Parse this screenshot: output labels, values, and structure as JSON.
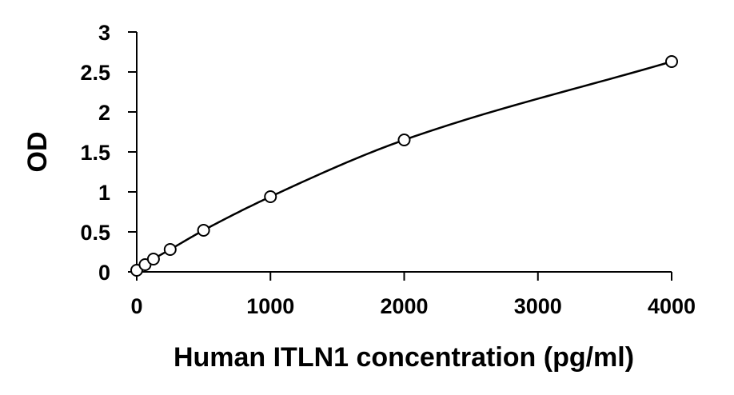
{
  "chart_data": {
    "type": "scatter",
    "title": "",
    "xlabel": "Human ITLN1 concentration (pg/ml)",
    "ylabel": "OD",
    "xlim": [
      0,
      4000
    ],
    "ylim": [
      0,
      3
    ],
    "xticks": [
      0,
      1000,
      2000,
      3000,
      4000
    ],
    "yticks": [
      0,
      0.5,
      1,
      1.5,
      2,
      2.5,
      3
    ],
    "xtick_labels": [
      "0",
      "1000",
      "2000",
      "3000",
      "4000"
    ],
    "ytick_labels": [
      "0",
      "0.5",
      "1",
      "1.5",
      "2",
      "2.5",
      "3"
    ],
    "grid": false,
    "legend": false,
    "marker": "open-circle",
    "fit": "smooth-curve",
    "color": "#000000",
    "series": [
      {
        "x": [
          0,
          62.5,
          125,
          250,
          500,
          1000,
          2000,
          4000
        ],
        "y": [
          0.02,
          0.09,
          0.16,
          0.28,
          0.52,
          0.94,
          1.65,
          2.63
        ]
      }
    ]
  }
}
